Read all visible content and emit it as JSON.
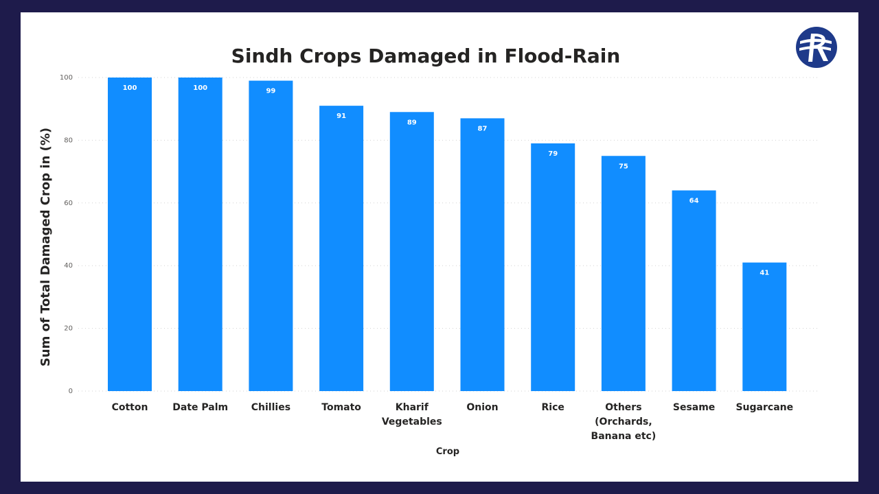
{
  "chart_data": {
    "type": "bar",
    "title": "Sindh Crops Damaged in Flood-Rain",
    "xlabel": "Crop",
    "ylabel": "Sum of Total Damaged Crop in (%)",
    "categories": [
      "Cotton",
      "Date Palm",
      "Chillies",
      "Tomato",
      "Kharif Vegetables",
      "Onion",
      "Rice",
      "Others (Orchards, Banana etc)",
      "Sesame",
      "Sugarcane"
    ],
    "category_lines": [
      [
        "Cotton"
      ],
      [
        "Date Palm"
      ],
      [
        "Chillies"
      ],
      [
        "Tomato"
      ],
      [
        "Kharif",
        "Vegetables"
      ],
      [
        "Onion"
      ],
      [
        "Rice"
      ],
      [
        "Others",
        "(Orchards,",
        "Banana etc)"
      ],
      [
        "Sesame"
      ],
      [
        "Sugarcane"
      ]
    ],
    "values": [
      100,
      100,
      99,
      91,
      89,
      87,
      79,
      75,
      64,
      41
    ],
    "ylim": [
      0,
      100
    ],
    "yticks": [
      0,
      20,
      40,
      60,
      80,
      100
    ],
    "grid": true,
    "bar_color": "#118dff"
  },
  "logo": {
    "name": "r-logo-icon",
    "color": "#1e3a8a"
  },
  "colors": {
    "frame": "#1e1b4b",
    "card": "#ffffff"
  }
}
